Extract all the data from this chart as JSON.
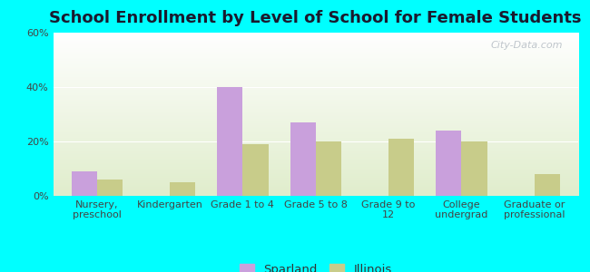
{
  "title": "School Enrollment by Level of School for Female Students",
  "categories": [
    "Nursery,\npreschool",
    "Kindergarten",
    "Grade 1 to 4",
    "Grade 5 to 8",
    "Grade 9 to\n12",
    "College\nundergrad",
    "Graduate or\nprofessional"
  ],
  "sparland": [
    9,
    0,
    40,
    27,
    0,
    24,
    0
  ],
  "illinois": [
    6,
    5,
    19,
    20,
    21,
    20,
    8
  ],
  "sparland_color": "#c9a0dc",
  "illinois_color": "#c8cc8a",
  "ylim": [
    0,
    60
  ],
  "yticks": [
    0,
    20,
    40,
    60
  ],
  "ytick_labels": [
    "0%",
    "20%",
    "40%",
    "60%"
  ],
  "background_color": "#00ffff",
  "bar_width": 0.35,
  "title_fontsize": 13,
  "tick_fontsize": 8.0,
  "legend_fontsize": 9.5,
  "watermark": "City-Data.com"
}
